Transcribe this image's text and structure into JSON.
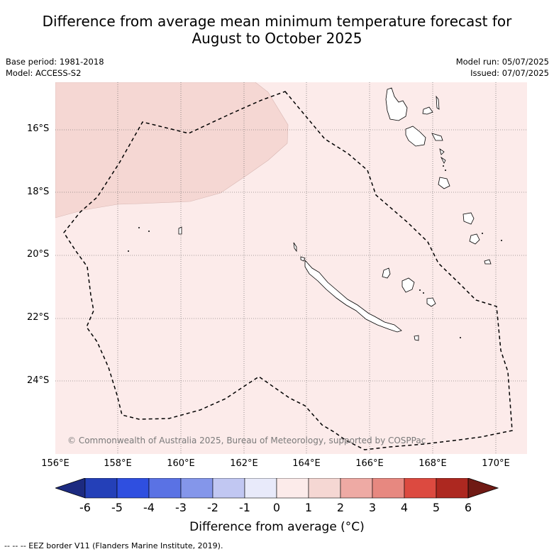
{
  "title": {
    "line1": "Difference from average mean minimum temperature forecast for",
    "line2": "August to October 2025"
  },
  "meta": {
    "base_period": "Base period: 1981-2018",
    "model": "Model: ACCESS-S2",
    "model_run": "Model run: 05/07/2025",
    "issued": "Issued: 07/07/2025"
  },
  "map": {
    "lon_range": [
      156,
      171
    ],
    "lat_range": [
      -26.25,
      -14.5
    ],
    "background_category": "0 to 1",
    "shaded_region_category": "1 to 2",
    "colors": {
      "bg": "#fcebea",
      "shade": "#f5d7d3",
      "grid": "#555555"
    },
    "y_ticks": [
      "16°S",
      "18°S",
      "20°S",
      "22°S",
      "24°S"
    ],
    "x_ticks": [
      "156°E",
      "158°E",
      "160°E",
      "162°E",
      "164°E",
      "166°E",
      "168°E",
      "170°E"
    ],
    "credit": "© Commonwealth of Australia 2025, Bureau of Meteorology, supported by COSPPac"
  },
  "colorbar": {
    "title": "Difference from average (°C)",
    "ticks": [
      "-6",
      "-5",
      "-4",
      "-3",
      "-2",
      "-1",
      "0",
      "1",
      "2",
      "3",
      "4",
      "5",
      "6"
    ],
    "colors": [
      "#1c2a80",
      "#2440b8",
      "#2f4fe0",
      "#5a72e4",
      "#8496ea",
      "#c1c7f2",
      "#e8eafa",
      "#fcebea",
      "#f5d7d3",
      "#eeaaa4",
      "#e78880",
      "#dc4a40",
      "#ad2820",
      "#701a14"
    ]
  },
  "footer": "--  --  -- EEZ border V11 (Flanders Marine Institute, 2019)."
}
